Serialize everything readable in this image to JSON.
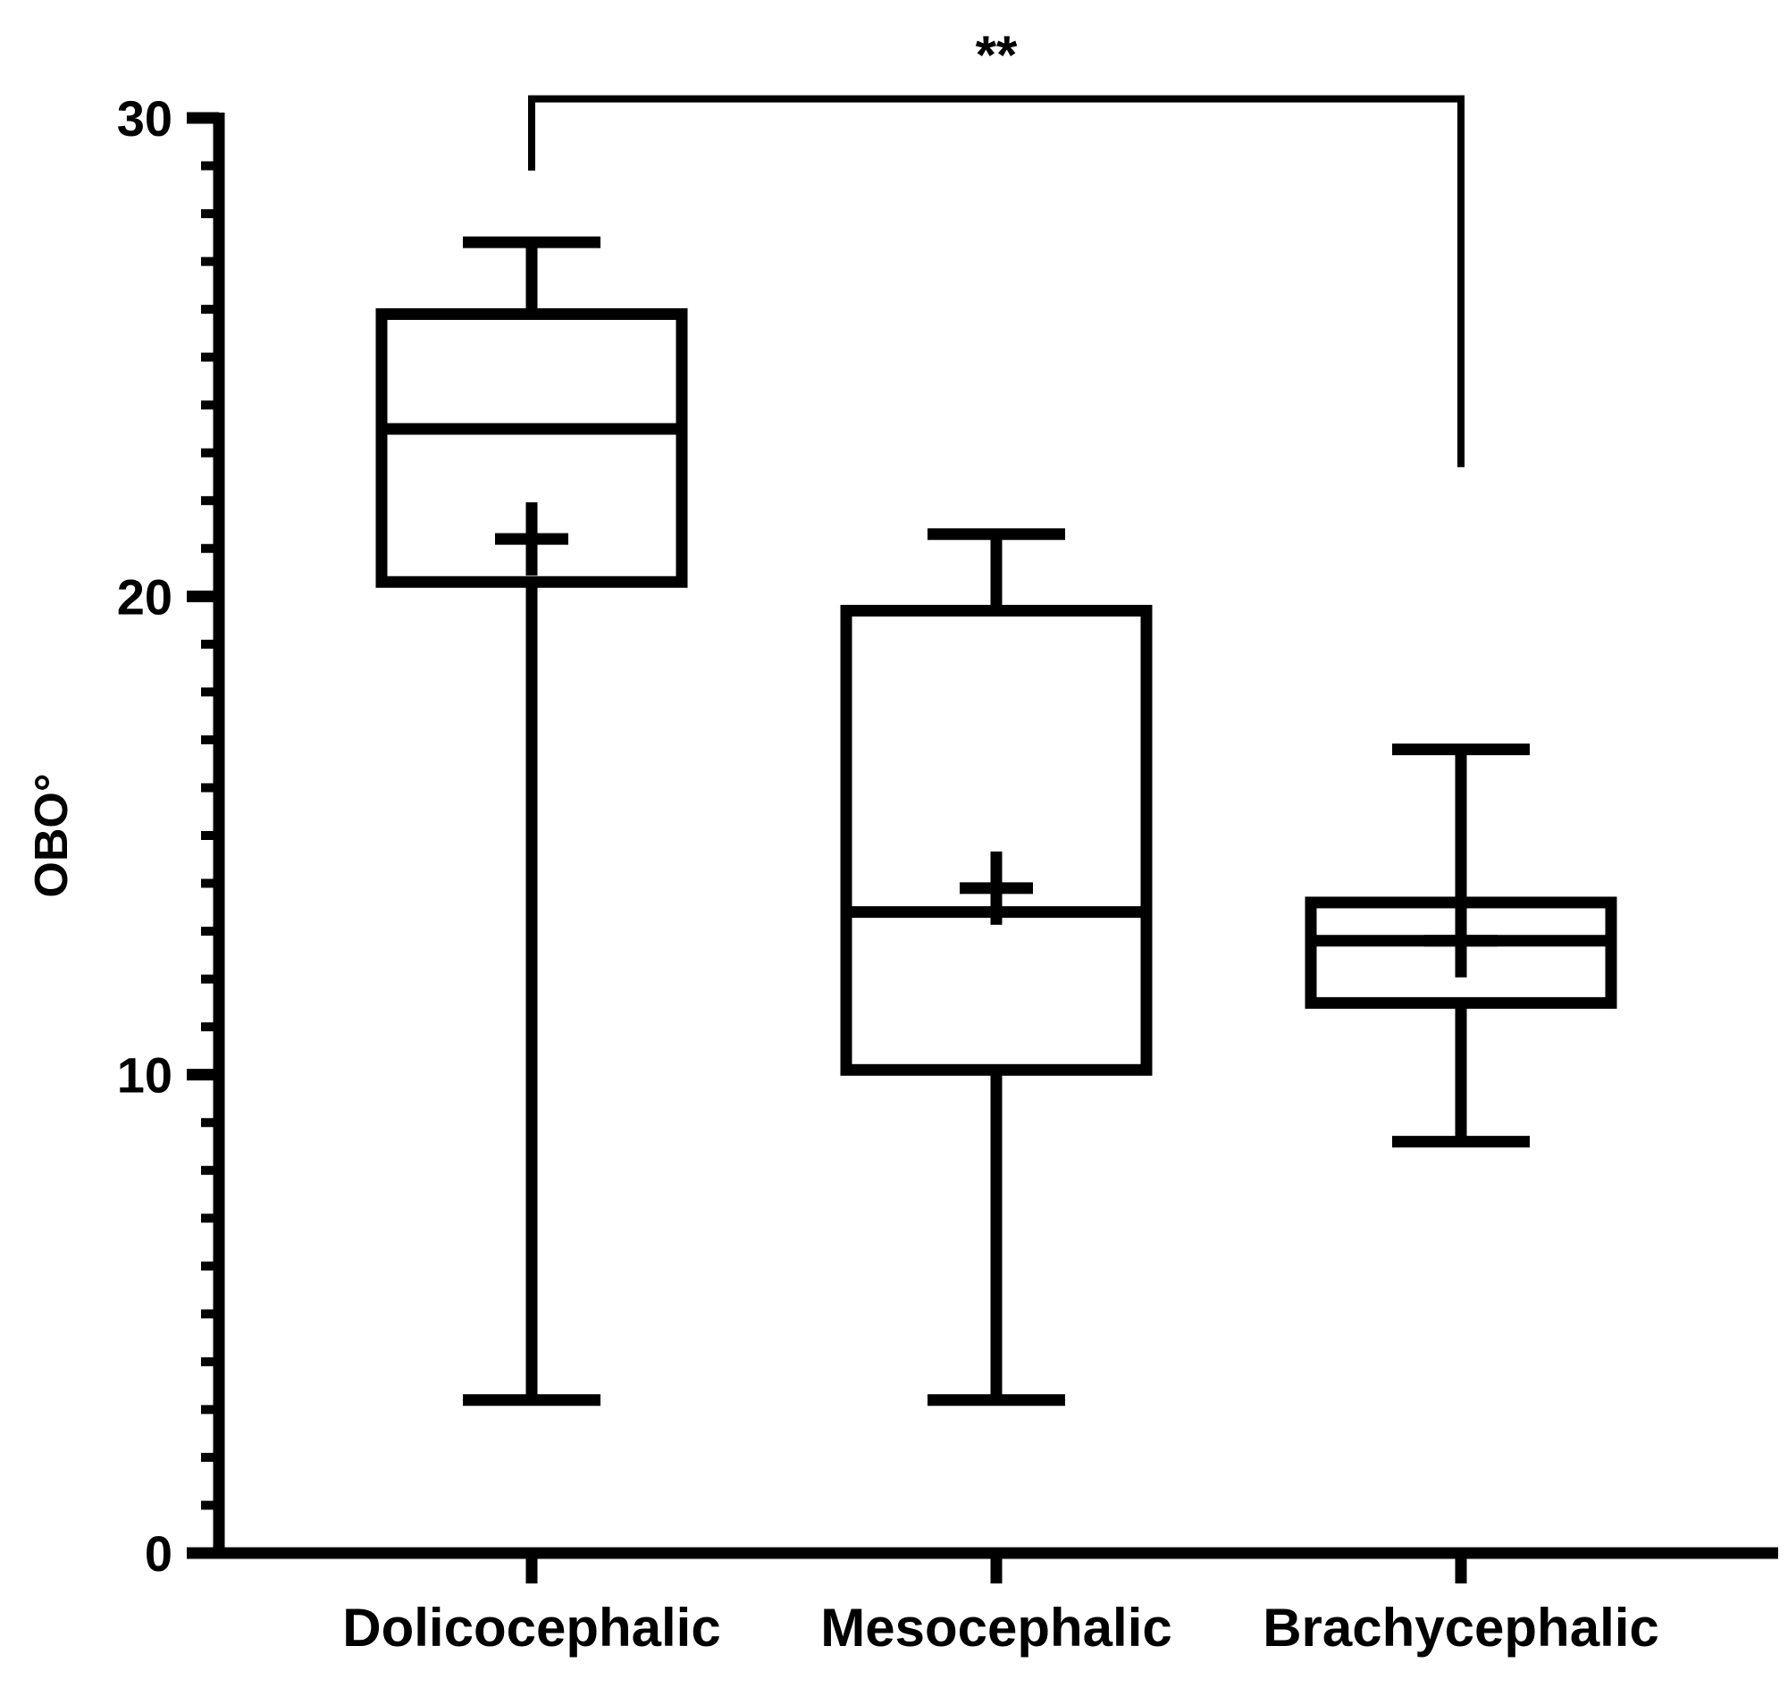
{
  "chart_data": {
    "type": "boxplot",
    "ylabel": "OBO°",
    "xlabel": "",
    "ylim": [
      0,
      30
    ],
    "yticks": [
      "0",
      "10",
      "20",
      "30"
    ],
    "y_minor_tick_step": 1,
    "grid": false,
    "legend": "none",
    "categories": [
      "Dolicocephalic",
      "Mesocephalic",
      "Brachycephalic"
    ],
    "boxes": [
      {
        "category": "Dolicocephalic",
        "min": 3.2,
        "q1": 20.3,
        "median": 23.5,
        "q3": 25.9,
        "max": 27.4,
        "mean": 21.2
      },
      {
        "category": "Mesocephalic",
        "min": 3.2,
        "q1": 10.1,
        "median": 13.4,
        "q3": 19.7,
        "max": 21.3,
        "mean": 13.9
      },
      {
        "category": "Brachycephalic",
        "min": 8.6,
        "q1": 11.5,
        "median": 12.8,
        "q3": 13.6,
        "max": 16.8,
        "mean": 12.8
      }
    ],
    "significance": {
      "from": "Dolicocephalic",
      "to": "Brachycephalic",
      "label": "**",
      "bracket_y": 30.4,
      "left_leg_end": 28.9,
      "right_leg_end": 22.7
    }
  },
  "colors": {
    "ink": "#000000",
    "background": "#ffffff"
  }
}
